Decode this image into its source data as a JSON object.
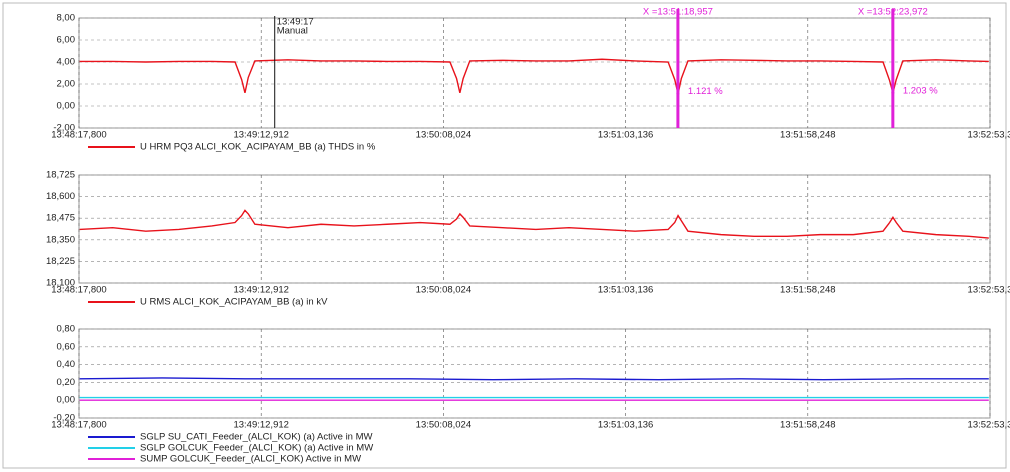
{
  "chart_data": [
    {
      "type": "line",
      "x": [
        49698,
        49708,
        49718,
        49728,
        49738,
        49745,
        49747,
        49748,
        49749,
        49751,
        49761,
        49771,
        49781,
        49791,
        49801,
        49810,
        49812,
        49813,
        49814,
        49816,
        49826,
        49836,
        49846,
        49856,
        49866,
        49876,
        49878,
        49879,
        49880,
        49882,
        49892,
        49902,
        49912,
        49922,
        49932,
        49941,
        49943,
        49944,
        49945,
        49947,
        49957,
        49967,
        49973
      ],
      "series": [
        {
          "name": "U HRM PQ3 ALCI_KOK_ACIPAYAM_BB (a) THDS in %",
          "color": "#e8121b",
          "values": [
            4.05,
            4.05,
            4.0,
            4.05,
            4.05,
            4.0,
            2.4,
            1.2,
            2.6,
            4.1,
            4.2,
            4.1,
            4.1,
            4.05,
            4.05,
            4.0,
            2.5,
            1.2,
            2.5,
            4.1,
            4.15,
            4.1,
            4.1,
            4.25,
            4.1,
            4.0,
            2.4,
            1.1,
            2.5,
            4.1,
            4.2,
            4.15,
            4.1,
            4.1,
            4.05,
            4.0,
            2.3,
            1.2,
            2.4,
            4.1,
            4.2,
            4.1,
            4.05
          ]
        }
      ],
      "xlim": [
        49697.8,
        49973.36
      ],
      "xticks": [
        {
          "value": 49697.8,
          "label": "13:48:17,800"
        },
        {
          "value": 49752.912,
          "label": "13:49:12,912"
        },
        {
          "value": 49808.024,
          "label": "13:50:08,024"
        },
        {
          "value": 49863.136,
          "label": "13:51:03,136"
        },
        {
          "value": 49918.248,
          "label": "13:51:58,248"
        },
        {
          "value": 49973.36,
          "label": "13:52:53,3"
        }
      ],
      "ylim": [
        -2,
        8
      ],
      "yticks": [
        {
          "value": -2,
          "label": "-2,00"
        },
        {
          "value": 0,
          "label": "0,00"
        },
        {
          "value": 2,
          "label": "2,00"
        },
        {
          "value": 4,
          "label": "4,00"
        },
        {
          "value": 6,
          "label": "6,00"
        },
        {
          "value": 8,
          "label": "8,00"
        }
      ],
      "grid": true,
      "marker": {
        "x": 49757,
        "labels": [
          "13:49:17",
          "Manual"
        ]
      },
      "cursors": [
        {
          "x": 49878.957,
          "x_label": "X =13:51:18,957",
          "value": 1.121,
          "value_label": "1.121 %",
          "color": "#e020d8"
        },
        {
          "x": 49943.972,
          "x_label": "X =13:52:23,972",
          "value": 1.203,
          "value_label": "1.203 %",
          "color": "#e020d8"
        }
      ]
    },
    {
      "type": "line",
      "x": [
        49698,
        49708,
        49718,
        49728,
        49738,
        49745,
        49747,
        49748,
        49749,
        49751,
        49761,
        49771,
        49781,
        49791,
        49801,
        49810,
        49812,
        49813,
        49814,
        49816,
        49826,
        49836,
        49846,
        49856,
        49866,
        49876,
        49878,
        49879,
        49880,
        49882,
        49892,
        49902,
        49912,
        49922,
        49932,
        49941,
        49943,
        49944,
        49945,
        49947,
        49957,
        49967,
        49973
      ],
      "series": [
        {
          "name": "U RMS ALCI_KOK_ACIPAYAM_BB (a) in kV",
          "color": "#e8121b",
          "values": [
            18.41,
            18.42,
            18.4,
            18.41,
            18.43,
            18.45,
            18.49,
            18.52,
            18.5,
            18.44,
            18.42,
            18.44,
            18.43,
            18.44,
            18.45,
            18.44,
            18.47,
            18.5,
            18.48,
            18.43,
            18.42,
            18.41,
            18.42,
            18.41,
            18.4,
            18.41,
            18.45,
            18.49,
            18.46,
            18.4,
            18.38,
            18.37,
            18.37,
            18.38,
            18.38,
            18.4,
            18.45,
            18.48,
            18.45,
            18.4,
            18.38,
            18.37,
            18.36
          ]
        }
      ],
      "xlim": [
        49697.8,
        49973.36
      ],
      "xticks": [
        {
          "value": 49697.8,
          "label": "13:48:17,800"
        },
        {
          "value": 49752.912,
          "label": "13:49:12,912"
        },
        {
          "value": 49808.024,
          "label": "13:50:08,024"
        },
        {
          "value": 49863.136,
          "label": "13:51:03,136"
        },
        {
          "value": 49918.248,
          "label": "13:51:58,248"
        },
        {
          "value": 49973.36,
          "label": "13:52:53,3"
        }
      ],
      "ylim": [
        18.1,
        18.725
      ],
      "yticks": [
        {
          "value": 18.1,
          "label": "18,100"
        },
        {
          "value": 18.225,
          "label": "18,225"
        },
        {
          "value": 18.35,
          "label": "18,350"
        },
        {
          "value": 18.475,
          "label": "18,475"
        },
        {
          "value": 18.6,
          "label": "18,600"
        },
        {
          "value": 18.725,
          "label": "18,725"
        }
      ],
      "grid": true
    },
    {
      "type": "line",
      "x": [
        49698,
        49723,
        49748,
        49773,
        49798,
        49823,
        49848,
        49873,
        49898,
        49923,
        49948,
        49973
      ],
      "series": [
        {
          "name": "SGLP SU_CATI_Feeder_(ALCI_KOK) (a) Active in MW",
          "color": "#1a1ad0",
          "values": [
            0.24,
            0.25,
            0.24,
            0.24,
            0.24,
            0.23,
            0.24,
            0.23,
            0.24,
            0.23,
            0.24,
            0.24
          ]
        },
        {
          "name": "SGLP GOLCUK_Feeder_(ALCI_KOK) (a) Active in MW",
          "color": "#22d0e8",
          "values": [
            0.03,
            0.03,
            0.03,
            0.03,
            0.03,
            0.03,
            0.03,
            0.03,
            0.03,
            0.03,
            0.03,
            0.03
          ]
        },
        {
          "name": "SUMP GOLCUK_Feeder_(ALCI_KOK) Active in MW",
          "color": "#e020d8",
          "values": [
            0,
            0,
            0,
            0,
            0,
            0,
            0,
            0,
            0,
            0,
            0,
            0
          ]
        }
      ],
      "xlim": [
        49697.8,
        49973.36
      ],
      "xticks": [
        {
          "value": 49697.8,
          "label": "13:48:17,800"
        },
        {
          "value": 49752.912,
          "label": "13:49:12,912"
        },
        {
          "value": 49808.024,
          "label": "13:50:08,024"
        },
        {
          "value": 49863.136,
          "label": "13:51:03,136"
        },
        {
          "value": 49918.248,
          "label": "13:51:58,248"
        },
        {
          "value": 49973.36,
          "label": "13:52:53,3"
        }
      ],
      "ylim": [
        -0.2,
        0.8
      ],
      "yticks": [
        {
          "value": -0.2,
          "label": "-0,20"
        },
        {
          "value": 0,
          "label": "0,00"
        },
        {
          "value": 0.2,
          "label": "0,20"
        },
        {
          "value": 0.4,
          "label": "0,40"
        },
        {
          "value": 0.6,
          "label": "0,60"
        },
        {
          "value": 0.8,
          "label": "0,80"
        }
      ],
      "grid": true
    }
  ]
}
